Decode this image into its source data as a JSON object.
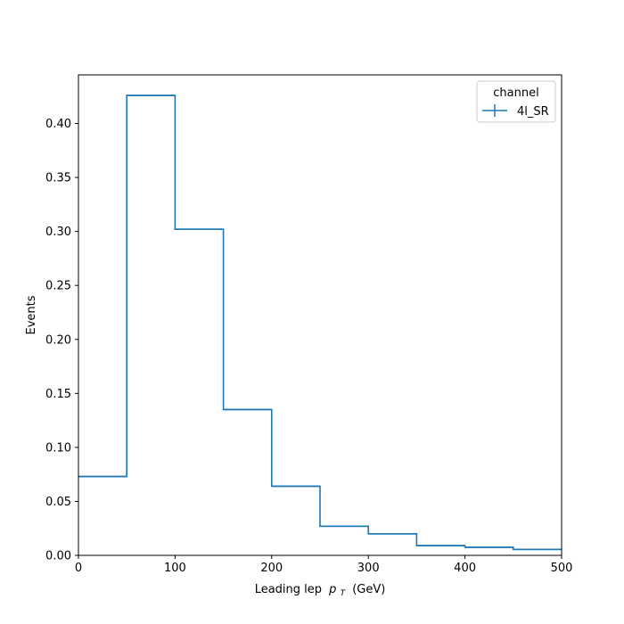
{
  "chart_data": {
    "type": "line",
    "style": "step histogram",
    "title": "",
    "xlabel": "Leading lep",
    "xlabel_math": "p",
    "xlabel_sub": "T",
    "xlabel_unit": "(GeV)",
    "ylabel": "Events",
    "xlim": [
      0,
      500
    ],
    "ylim": [
      0,
      0.445
    ],
    "x_ticks": [
      0,
      100,
      200,
      300,
      400,
      500
    ],
    "y_ticks": [
      0.0,
      0.05,
      0.1,
      0.15,
      0.2,
      0.25,
      0.3,
      0.35,
      0.4
    ],
    "y_tick_labels": [
      "0.00",
      "0.05",
      "0.10",
      "0.15",
      "0.20",
      "0.25",
      "0.30",
      "0.35",
      "0.40"
    ],
    "grid": false,
    "legend": {
      "title": "channel",
      "placement": "top-right"
    },
    "series": [
      {
        "name": "4l_SR",
        "color": "#1f77b4",
        "bin_edges": [
          0,
          50,
          100,
          150,
          200,
          250,
          300,
          350,
          400,
          450,
          500
        ],
        "values": [
          0.073,
          0.426,
          0.302,
          0.135,
          0.064,
          0.027,
          0.02,
          0.009,
          0.0075,
          0.0055
        ]
      }
    ]
  }
}
